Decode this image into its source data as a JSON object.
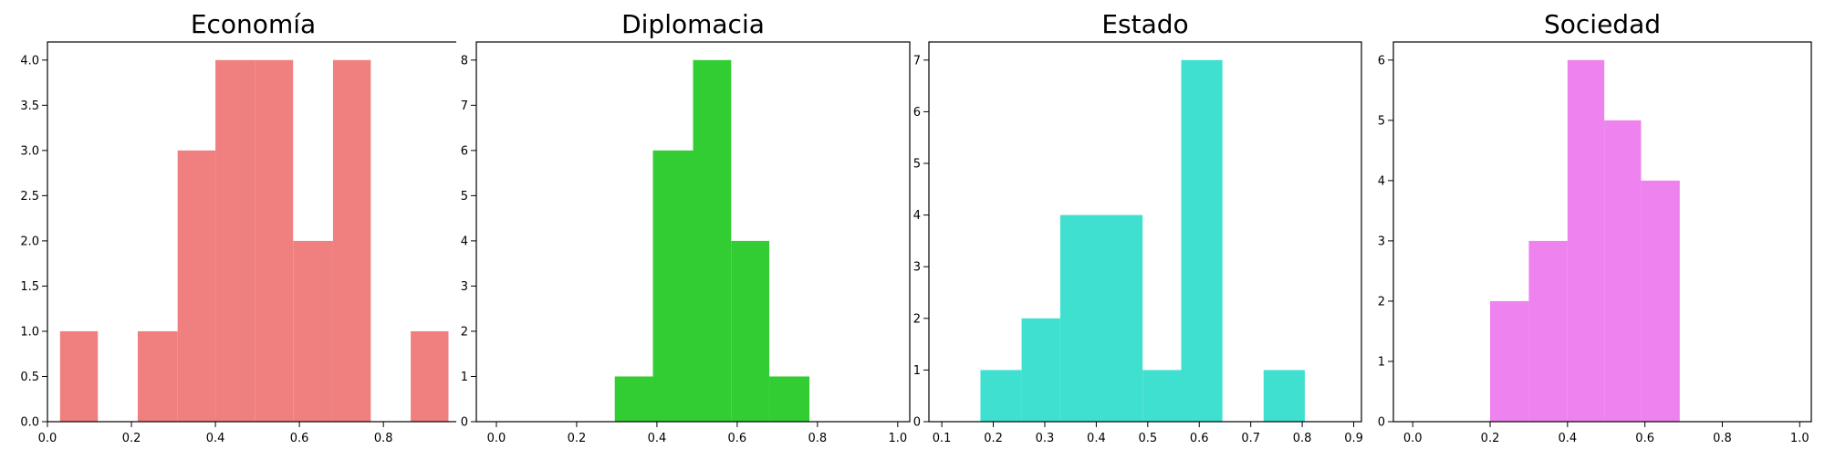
{
  "chart_data": [
    {
      "type": "bar",
      "title": "Economía",
      "color": "#f08080",
      "bins": [
        {
          "x0": 0.03,
          "x1": 0.12,
          "count": 1
        },
        {
          "x0": 0.12,
          "x1": 0.215,
          "count": 0
        },
        {
          "x0": 0.215,
          "x1": 0.31,
          "count": 1
        },
        {
          "x0": 0.31,
          "x1": 0.4,
          "count": 3
        },
        {
          "x0": 0.4,
          "x1": 0.495,
          "count": 4
        },
        {
          "x0": 0.495,
          "x1": 0.585,
          "count": 4
        },
        {
          "x0": 0.585,
          "x1": 0.68,
          "count": 2
        },
        {
          "x0": 0.68,
          "x1": 0.77,
          "count": 4
        },
        {
          "x0": 0.77,
          "x1": 0.865,
          "count": 0
        },
        {
          "x0": 0.865,
          "x1": 0.955,
          "count": 1
        }
      ],
      "xlim": [
        0.0,
        0.98
      ],
      "ylim": [
        0,
        4.2
      ],
      "xticks": [
        0.0,
        0.2,
        0.4,
        0.6,
        0.8
      ],
      "xtick_labels": [
        "0.0",
        "0.2",
        "0.4",
        "0.6",
        "0.8"
      ],
      "yticks": [
        0.0,
        0.5,
        1.0,
        1.5,
        2.0,
        2.5,
        3.0,
        3.5,
        4.0
      ],
      "ytick_labels": [
        "0.0",
        "0.5",
        "1.0",
        "1.5",
        "2.0",
        "2.5",
        "3.0",
        "3.5",
        "4.0"
      ]
    },
    {
      "type": "bar",
      "title": "Diplomacia",
      "color": "#32cd32",
      "bins": [
        {
          "x0": 0.295,
          "x1": 0.39,
          "count": 1
        },
        {
          "x0": 0.39,
          "x1": 0.49,
          "count": 6
        },
        {
          "x0": 0.49,
          "x1": 0.585,
          "count": 8
        },
        {
          "x0": 0.585,
          "x1": 0.68,
          "count": 4
        },
        {
          "x0": 0.68,
          "x1": 0.78,
          "count": 1
        }
      ],
      "xlim": [
        -0.05,
        1.03
      ],
      "ylim": [
        0,
        8.4
      ],
      "xticks": [
        0.0,
        0.2,
        0.4,
        0.6,
        0.8,
        1.0
      ],
      "xtick_labels": [
        "0.0",
        "0.2",
        "0.4",
        "0.6",
        "0.8",
        "1.0"
      ],
      "yticks": [
        0,
        1,
        2,
        3,
        4,
        5,
        6,
        7,
        8
      ],
      "ytick_labels": [
        "0",
        "1",
        "2",
        "3",
        "4",
        "5",
        "6",
        "7",
        "8"
      ]
    },
    {
      "type": "bar",
      "title": "Estado",
      "color": "#40e0d0",
      "bins": [
        {
          "x0": 0.175,
          "x1": 0.255,
          "count": 1
        },
        {
          "x0": 0.255,
          "x1": 0.33,
          "count": 2
        },
        {
          "x0": 0.33,
          "x1": 0.41,
          "count": 4
        },
        {
          "x0": 0.41,
          "x1": 0.49,
          "count": 4
        },
        {
          "x0": 0.49,
          "x1": 0.565,
          "count": 1
        },
        {
          "x0": 0.565,
          "x1": 0.645,
          "count": 7
        },
        {
          "x0": 0.645,
          "x1": 0.725,
          "count": 0
        },
        {
          "x0": 0.725,
          "x1": 0.805,
          "count": 1
        }
      ],
      "xlim": [
        0.075,
        0.915
      ],
      "ylim": [
        0,
        7.35
      ],
      "xticks": [
        0.1,
        0.2,
        0.3,
        0.4,
        0.5,
        0.6,
        0.7,
        0.8,
        0.9
      ],
      "xtick_labels": [
        "0.1",
        "0.2",
        "0.3",
        "0.4",
        "0.5",
        "0.6",
        "0.7",
        "0.8",
        "0.9"
      ],
      "yticks": [
        0,
        1,
        2,
        3,
        4,
        5,
        6,
        7
      ],
      "ytick_labels": [
        "0",
        "1",
        "2",
        "3",
        "4",
        "5",
        "6",
        "7"
      ]
    },
    {
      "type": "bar",
      "title": "Sociedad",
      "color": "#ee82ee",
      "bins": [
        {
          "x0": 0.2,
          "x1": 0.3,
          "count": 2
        },
        {
          "x0": 0.3,
          "x1": 0.4,
          "count": 3
        },
        {
          "x0": 0.4,
          "x1": 0.495,
          "count": 6
        },
        {
          "x0": 0.495,
          "x1": 0.59,
          "count": 5
        },
        {
          "x0": 0.59,
          "x1": 0.69,
          "count": 4
        }
      ],
      "xlim": [
        -0.05,
        1.03
      ],
      "ylim": [
        0,
        6.3
      ],
      "xticks": [
        0.0,
        0.2,
        0.4,
        0.6,
        0.8,
        1.0
      ],
      "xtick_labels": [
        "0.0",
        "0.2",
        "0.4",
        "0.6",
        "0.8",
        "1.0"
      ],
      "yticks": [
        0,
        1,
        2,
        3,
        4,
        5,
        6
      ],
      "ytick_labels": [
        "0",
        "1",
        "2",
        "3",
        "4",
        "5",
        "6"
      ]
    }
  ]
}
